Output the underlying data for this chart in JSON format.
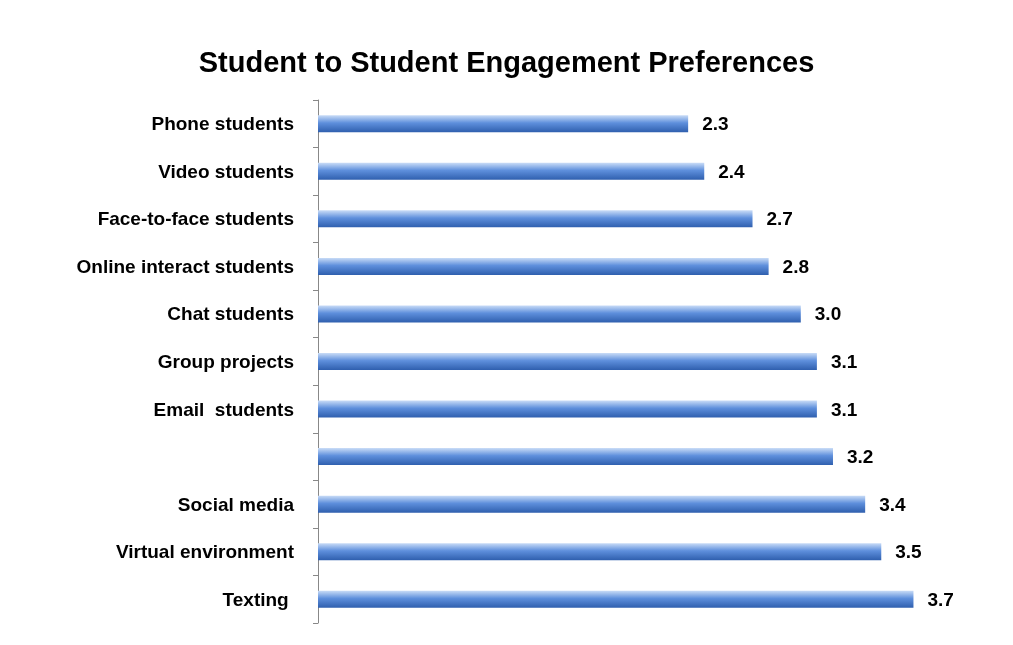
{
  "chart_data": {
    "type": "bar",
    "orientation": "horizontal",
    "title": "Student to Student Engagement Preferences",
    "categories": [
      "Phone students",
      "Video students",
      "Face-to-face students",
      "Online interact students",
      "Chat students",
      "Group projects",
      "Email  students",
      null,
      "Social media",
      "Virtual environment",
      "Texting "
    ],
    "values": [
      2.3,
      2.4,
      2.7,
      2.8,
      3.0,
      3.1,
      3.1,
      3.2,
      3.4,
      3.5,
      3.7
    ],
    "value_labels": [
      "2.3",
      "2.4",
      "2.7",
      "2.8",
      "3.0",
      "3.1",
      "3.1",
      "3.2",
      "3.4",
      "3.5",
      "3.7"
    ],
    "color": "#5e8fdc"
  }
}
